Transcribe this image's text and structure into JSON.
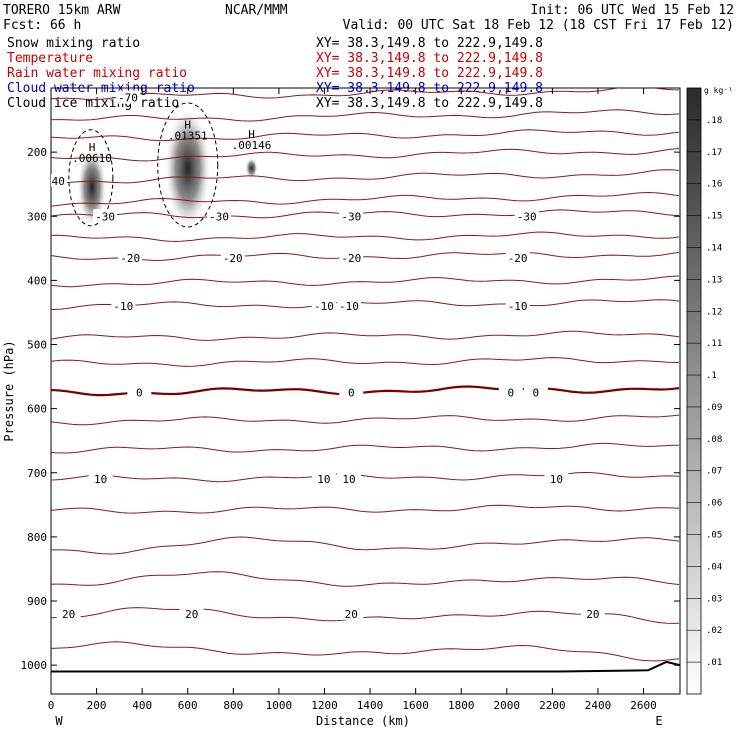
{
  "header": {
    "model": "TORERO  15km ARW",
    "center": "NCAR/MMM",
    "init": "Init: 06 UTC Wed 15 Feb 12",
    "fcst": "Fcst:   66 h",
    "valid": "Valid: 00 UTC Sat 18 Feb 12 (18 CST Fri 17 Feb 12)"
  },
  "fields": [
    {
      "label": "Snow mixing ratio",
      "color": "#000000",
      "xy": "XY=  38.3,149.8 to 222.9,149.8",
      "xy_color": "#000000"
    },
    {
      "label": "Temperature",
      "color": "#cc0000",
      "xy": "XY=  38.3,149.8 to 222.9,149.8",
      "xy_color": "#cc0000"
    },
    {
      "label": "Rain water mixing ratio",
      "color": "#cc0000",
      "xy": "XY=  38.3,149.8 to 222.9,149.8",
      "xy_color": "#cc0000"
    },
    {
      "label": "Cloud water mixing ratio",
      "color": "#0000cc",
      "xy": "XY=  38.3,149.8 to 222.9,149.8",
      "xy_color": "#0000cc"
    },
    {
      "label": "Cloud ice mixing ratio",
      "color": "#000000",
      "xy": "XY=  38.3,149.8 to 222.9,149.8",
      "xy_color": "#000000"
    }
  ],
  "colors": {
    "temperature": "#8b1a1a",
    "freezing_line": "#7a0000",
    "terrain": "#000000",
    "cloud_ice_contour": "#000000"
  },
  "chart_data": {
    "type": "contour",
    "xlabel": "Distance (km)",
    "ylabel": "Pressure (hPa)",
    "x_ticks": [
      0,
      200,
      400,
      600,
      800,
      1000,
      1200,
      1400,
      1600,
      1800,
      2000,
      2200,
      2400,
      2600
    ],
    "y_ticks": [
      200,
      300,
      400,
      500,
      600,
      700,
      800,
      900,
      1000
    ],
    "xlim": [
      0,
      2760
    ],
    "ylim": [
      1045,
      100
    ],
    "x_end_labels": {
      "left": "W",
      "right": "E"
    },
    "colorbar": {
      "unit": "g kg⁻¹",
      "ticks": [
        ".01",
        ".02",
        ".03",
        ".04",
        ".05",
        ".06",
        ".07",
        ".08",
        ".09",
        ".1",
        ".11",
        ".12",
        ".13",
        ".14",
        ".15",
        ".16",
        ".17",
        ".18"
      ]
    },
    "snow_maxima": [
      {
        "x": 180,
        "p": 245,
        "label": ".00610",
        "mark": "H"
      },
      {
        "x": 600,
        "p": 210,
        "label": ".01351",
        "mark": "H"
      },
      {
        "x": 880,
        "p": 225,
        "label": ".00146",
        "mark": "H"
      }
    ],
    "temperature_isotherms": [
      {
        "p": 115,
        "label": "-70",
        "label_x": [
          320
        ]
      },
      {
        "p": 150,
        "label": "",
        "label_x": []
      },
      {
        "p": 180,
        "label": "",
        "label_x": []
      },
      {
        "p": 210,
        "label": "",
        "label_x": []
      },
      {
        "p": 245,
        "label": "-40",
        "label_x": [
          0
        ]
      },
      {
        "p": 280,
        "label": "",
        "label_x": []
      },
      {
        "p": 300,
        "label": "-30",
        "label_x": [
          220,
          720,
          1300,
          2070
        ]
      },
      {
        "p": 335,
        "label": "",
        "label_x": []
      },
      {
        "p": 365,
        "label": "-20",
        "label_x": [
          330,
          780,
          1300,
          2030
        ]
      },
      {
        "p": 405,
        "label": "",
        "label_x": []
      },
      {
        "p": 440,
        "label": "-10",
        "label_x": [
          300,
          1180,
          1290,
          2030
        ]
      },
      {
        "p": 490,
        "label": "",
        "label_x": []
      },
      {
        "p": 530,
        "label": "",
        "label_x": []
      },
      {
        "p": 575,
        "label": "0",
        "label_x": [
          370,
          1300,
          2000,
          2110
        ]
      },
      {
        "p": 620,
        "label": "",
        "label_x": []
      },
      {
        "p": 665,
        "label": "",
        "label_x": []
      },
      {
        "p": 710,
        "label": "10",
        "label_x": [
          200,
          1180,
          1290,
          2200
        ]
      },
      {
        "p": 760,
        "label": "",
        "label_x": []
      },
      {
        "p": 815,
        "label": "",
        "label_x": []
      },
      {
        "p": 865,
        "label": "",
        "label_x": []
      },
      {
        "p": 920,
        "label": "20",
        "label_x": [
          60,
          600,
          1300,
          2360
        ]
      },
      {
        "p": 975,
        "label": "",
        "label_x": []
      }
    ],
    "freezing_level": 575
  }
}
